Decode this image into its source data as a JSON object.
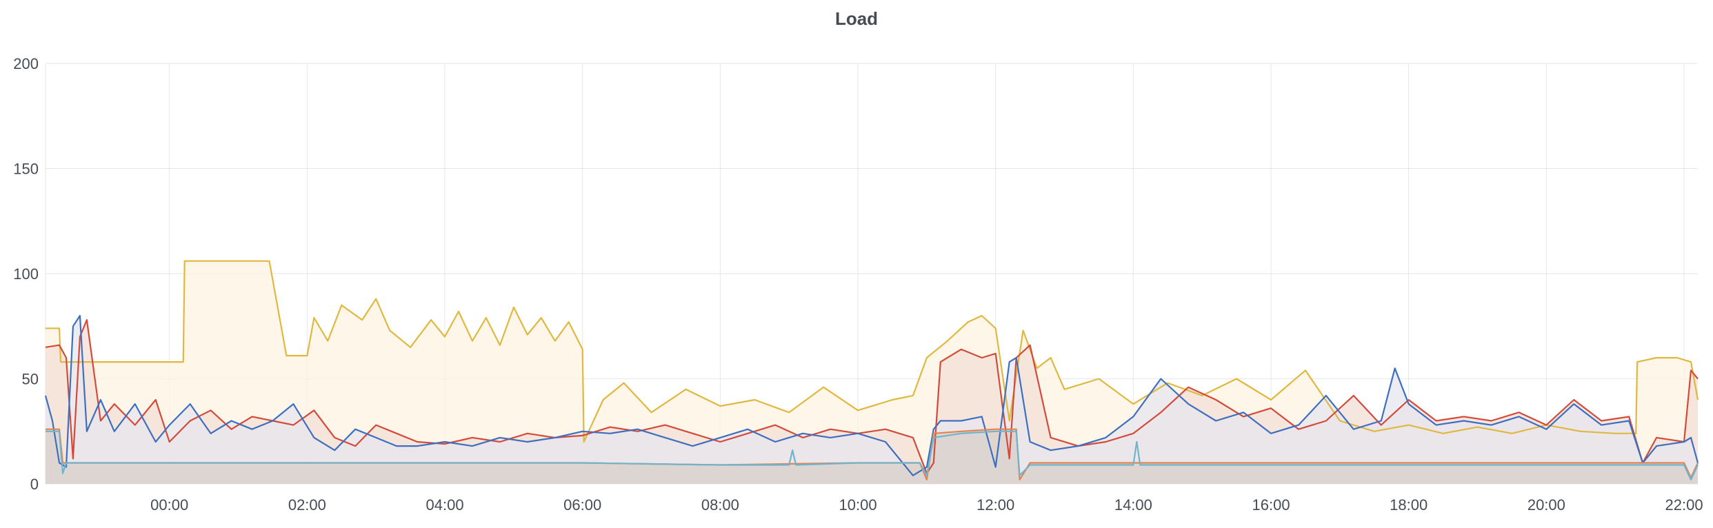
{
  "chart_data": {
    "type": "line",
    "title": "Load",
    "ylim": [
      0,
      200
    ],
    "xlim_hours": [
      -1.8,
      22.2
    ],
    "y_ticks": [
      "0",
      "50",
      "100",
      "150",
      "200"
    ],
    "x_ticks": [
      {
        "label": "00:00",
        "hour": 0
      },
      {
        "label": "02:00",
        "hour": 2
      },
      {
        "label": "04:00",
        "hour": 4
      },
      {
        "label": "06:00",
        "hour": 6
      },
      {
        "label": "08:00",
        "hour": 8
      },
      {
        "label": "10:00",
        "hour": 10
      },
      {
        "label": "12:00",
        "hour": 12
      },
      {
        "label": "14:00",
        "hour": 14
      },
      {
        "label": "16:00",
        "hour": 16
      },
      {
        "label": "18:00",
        "hour": 18
      },
      {
        "label": "20:00",
        "hour": 20
      },
      {
        "label": "22:00",
        "hour": 22
      }
    ],
    "grid": true,
    "legend": "none",
    "series": [
      {
        "color": "#e0b83f",
        "fill": "#fdf3e0",
        "x": [
          -1.8,
          -1.6,
          -1.58,
          -1,
          -0.5,
          0,
          0.2,
          0.22,
          1,
          1.4,
          1.45,
          1.7,
          2,
          2.1,
          2.3,
          2.5,
          2.8,
          3,
          3.2,
          3.5,
          3.8,
          4,
          4.2,
          4.4,
          4.6,
          4.8,
          5,
          5.2,
          5.4,
          5.6,
          5.8,
          6,
          6.02,
          6.3,
          6.6,
          7,
          7.5,
          8,
          8.5,
          9,
          9.5,
          10,
          10.5,
          10.8,
          11,
          11.3,
          11.6,
          11.8,
          12,
          12.2,
          12.4,
          12.6,
          12.8,
          13,
          13.5,
          14,
          14.5,
          15,
          15.5,
          16,
          16.5,
          17,
          17.5,
          18,
          18.5,
          19,
          19.5,
          20,
          20.5,
          21,
          21.3,
          21.32,
          21.6,
          21.9,
          22.1,
          22.2
        ],
        "values": [
          74,
          74,
          58,
          58,
          58,
          58,
          58,
          106,
          106,
          106,
          106,
          61,
          61,
          79,
          68,
          85,
          78,
          88,
          73,
          65,
          78,
          70,
          82,
          68,
          79,
          66,
          84,
          71,
          79,
          68,
          77,
          64,
          20,
          40,
          48,
          34,
          45,
          37,
          40,
          34,
          46,
          35,
          40,
          42,
          60,
          68,
          77,
          80,
          74,
          30,
          73,
          55,
          60,
          45,
          50,
          38,
          48,
          42,
          50,
          40,
          54,
          30,
          25,
          28,
          24,
          27,
          24,
          28,
          25,
          24,
          24,
          58,
          60,
          60,
          58,
          40
        ]
      },
      {
        "color": "#d44a3a",
        "fill": "#f2dfd6",
        "x": [
          -1.8,
          -1.6,
          -1.5,
          -1.4,
          -1.3,
          -1.2,
          -1,
          -0.8,
          -0.5,
          -0.2,
          0,
          0.3,
          0.6,
          0.9,
          1.2,
          1.5,
          1.8,
          2.1,
          2.4,
          2.7,
          3,
          3.3,
          3.6,
          4,
          4.4,
          4.8,
          5.2,
          5.6,
          6,
          6.4,
          6.8,
          7.2,
          7.6,
          8,
          8.4,
          8.8,
          9.2,
          9.6,
          10,
          10.4,
          10.8,
          11,
          11.1,
          11.2,
          11.5,
          11.8,
          12,
          12.2,
          12.3,
          12.5,
          12.8,
          13.2,
          13.6,
          14,
          14.4,
          14.8,
          15.2,
          15.6,
          16,
          16.4,
          16.8,
          17.2,
          17.6,
          18,
          18.4,
          18.8,
          19.2,
          19.6,
          20,
          20.4,
          20.8,
          21.2,
          21.4,
          21.6,
          22,
          22.1,
          22.2
        ],
        "values": [
          65,
          66,
          60,
          12,
          70,
          78,
          30,
          38,
          28,
          40,
          20,
          30,
          35,
          26,
          32,
          30,
          28,
          35,
          22,
          18,
          28,
          24,
          20,
          19,
          22,
          20,
          24,
          22,
          23,
          27,
          25,
          28,
          24,
          20,
          24,
          28,
          22,
          26,
          24,
          26,
          22,
          5,
          10,
          58,
          64,
          60,
          62,
          12,
          60,
          66,
          22,
          18,
          20,
          24,
          34,
          46,
          40,
          32,
          36,
          26,
          30,
          42,
          28,
          40,
          30,
          32,
          30,
          34,
          28,
          40,
          30,
          32,
          10,
          22,
          20,
          54,
          50
        ]
      },
      {
        "color": "#3e6ec0",
        "fill": "#e6e6ef",
        "x": [
          -1.8,
          -1.7,
          -1.6,
          -1.5,
          -1.4,
          -1.3,
          -1.2,
          -1,
          -0.8,
          -0.5,
          -0.2,
          0,
          0.3,
          0.6,
          0.9,
          1.2,
          1.5,
          1.8,
          2.1,
          2.4,
          2.7,
          3,
          3.3,
          3.6,
          4,
          4.4,
          4.8,
          5.2,
          5.6,
          6,
          6.4,
          6.8,
          7.2,
          7.6,
          8,
          8.4,
          8.8,
          9.2,
          9.6,
          10,
          10.4,
          10.8,
          11,
          11.1,
          11.2,
          11.5,
          11.8,
          12,
          12.2,
          12.3,
          12.5,
          12.8,
          13.2,
          13.6,
          14,
          14.4,
          14.8,
          15.2,
          15.6,
          16,
          16.4,
          16.8,
          17.2,
          17.6,
          17.8,
          18,
          18.4,
          18.8,
          19.2,
          19.6,
          20,
          20.4,
          20.8,
          21.2,
          21.4,
          21.6,
          22,
          22.1,
          22.2
        ],
        "values": [
          42,
          30,
          10,
          8,
          75,
          80,
          25,
          40,
          25,
          38,
          20,
          28,
          38,
          24,
          30,
          26,
          30,
          38,
          22,
          16,
          26,
          22,
          18,
          18,
          20,
          18,
          22,
          20,
          22,
          25,
          24,
          26,
          22,
          18,
          22,
          26,
          20,
          24,
          22,
          24,
          20,
          4,
          8,
          26,
          30,
          30,
          32,
          8,
          58,
          60,
          20,
          16,
          18,
          22,
          32,
          50,
          38,
          30,
          34,
          24,
          28,
          42,
          26,
          30,
          55,
          38,
          28,
          30,
          28,
          32,
          26,
          38,
          28,
          30,
          10,
          18,
          20,
          22,
          10
        ]
      },
      {
        "color": "#e3834f",
        "fill": "#d8cfc8",
        "x": [
          -1.8,
          -1.6,
          -1.55,
          -1.5,
          -1,
          0,
          2,
          4,
          6,
          8,
          10,
          10.9,
          11,
          11.1,
          11.5,
          12,
          12.3,
          12.35,
          12.5,
          14,
          16,
          18,
          20,
          21.5,
          22,
          22.1,
          22.2
        ],
        "values": [
          26,
          26,
          10,
          10,
          10,
          10,
          10,
          10,
          10,
          9,
          10,
          10,
          2,
          24,
          25,
          26,
          26,
          2,
          10,
          10,
          10,
          10,
          10,
          10,
          10,
          3,
          10
        ]
      },
      {
        "color": "#70b4cc",
        "fill": "none",
        "x": [
          -1.8,
          -1.6,
          -1.55,
          -1.5,
          -1,
          0,
          2,
          4,
          6,
          8,
          9,
          9.05,
          9.1,
          10,
          10.9,
          11,
          11.1,
          11.5,
          12,
          12.3,
          12.35,
          12.5,
          14,
          14.05,
          14.1,
          16,
          18,
          20,
          21.5,
          22,
          22.1,
          22.2
        ],
        "values": [
          25,
          25,
          5,
          10,
          10,
          10,
          10,
          10,
          10,
          9,
          9,
          16,
          9,
          10,
          10,
          4,
          22,
          24,
          25,
          25,
          4,
          9,
          9,
          20,
          9,
          9,
          9,
          9,
          9,
          9,
          2,
          9
        ]
      }
    ]
  }
}
